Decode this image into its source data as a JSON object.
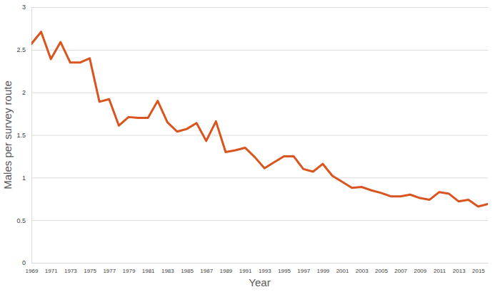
{
  "chart_data": {
    "type": "line",
    "x_label": "Year",
    "y_label": "Males per survey route",
    "x": [
      1969,
      1970,
      1971,
      1972,
      1973,
      1974,
      1975,
      1976,
      1977,
      1978,
      1979,
      1980,
      1981,
      1982,
      1983,
      1984,
      1985,
      1986,
      1987,
      1988,
      1989,
      1990,
      1991,
      1992,
      1993,
      1994,
      1995,
      1996,
      1997,
      1998,
      1999,
      2000,
      2001,
      2002,
      2003,
      2004,
      2005,
      2006,
      2007,
      2008,
      2009,
      2010,
      2011,
      2012,
      2013,
      2014,
      2015,
      2016
    ],
    "values": [
      2.57,
      2.71,
      2.39,
      2.59,
      2.35,
      2.35,
      2.4,
      1.89,
      1.92,
      1.61,
      1.71,
      1.7,
      1.7,
      1.9,
      1.65,
      1.54,
      1.57,
      1.64,
      1.43,
      1.66,
      1.3,
      1.32,
      1.35,
      1.24,
      1.11,
      1.18,
      1.25,
      1.25,
      1.1,
      1.07,
      1.16,
      1.02,
      0.95,
      0.88,
      0.89,
      0.85,
      0.82,
      0.78,
      0.78,
      0.8,
      0.76,
      0.74,
      0.83,
      0.81,
      0.72,
      0.74,
      0.66,
      0.69
    ],
    "color": "#d9541e",
    "xlim": [
      1969,
      2016
    ],
    "xticks": [
      1969,
      1971,
      1973,
      1975,
      1977,
      1979,
      1981,
      1983,
      1985,
      1987,
      1989,
      1991,
      1993,
      1995,
      1997,
      1999,
      2001,
      2003,
      2005,
      2007,
      2009,
      2011,
      2013,
      2015
    ],
    "ylim": [
      0,
      3
    ],
    "yticks": [
      0,
      0.5,
      1,
      1.5,
      2,
      2.5,
      3
    ],
    "grid": true
  }
}
